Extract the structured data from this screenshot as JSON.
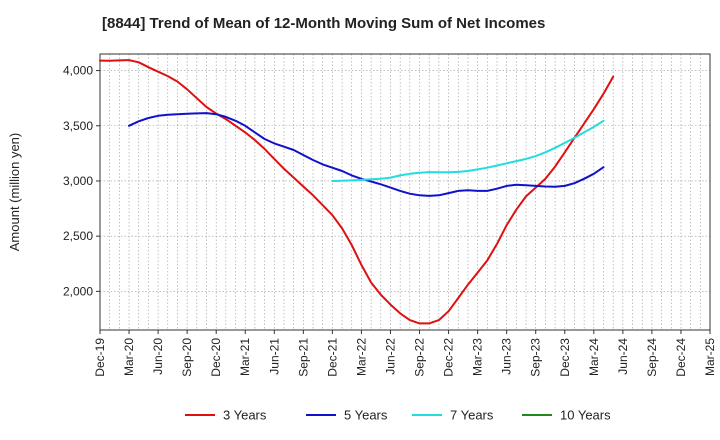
{
  "chart_data": {
    "type": "line",
    "title": "[8844]  Trend of Mean of 12-Month Moving Sum of Net Incomes",
    "xlabel": "",
    "ylabel": "Amount (million yen)",
    "ylim": [
      1650,
      4150
    ],
    "yticks": [
      2000,
      2500,
      3000,
      3500,
      4000
    ],
    "ytick_labels": [
      "2,000",
      "2,500",
      "3,000",
      "3,500",
      "4,000"
    ],
    "x_range": [
      0,
      63
    ],
    "xticks": [
      0,
      3,
      6,
      9,
      12,
      15,
      18,
      21,
      24,
      27,
      30,
      33,
      36,
      39,
      42,
      45,
      48,
      51,
      54,
      57,
      60,
      63
    ],
    "xtick_labels": [
      "Dec-19",
      "Mar-20",
      "Jun-20",
      "Sep-20",
      "Dec-20",
      "Mar-21",
      "Jun-21",
      "Sep-21",
      "Dec-21",
      "Mar-22",
      "Jun-22",
      "Sep-22",
      "Dec-22",
      "Mar-23",
      "Jun-23",
      "Sep-23",
      "Dec-23",
      "Mar-24",
      "Jun-24",
      "Sep-24",
      "Dec-24",
      "Mar-25"
    ],
    "grid": true,
    "legend_position": "bottom",
    "series": [
      {
        "name": "3 Years",
        "color": "#dd1111",
        "points": [
          [
            0,
            4090
          ],
          [
            1,
            4088
          ],
          [
            2,
            4092
          ],
          [
            3,
            4095
          ],
          [
            4,
            4075
          ],
          [
            5,
            4030
          ],
          [
            6,
            3990
          ],
          [
            7,
            3950
          ],
          [
            8,
            3900
          ],
          [
            9,
            3830
          ],
          [
            10,
            3750
          ],
          [
            11,
            3670
          ],
          [
            12,
            3610
          ],
          [
            13,
            3560
          ],
          [
            14,
            3500
          ],
          [
            15,
            3440
          ],
          [
            16,
            3370
          ],
          [
            17,
            3290
          ],
          [
            18,
            3200
          ],
          [
            19,
            3110
          ],
          [
            20,
            3030
          ],
          [
            21,
            2950
          ],
          [
            22,
            2870
          ],
          [
            23,
            2780
          ],
          [
            24,
            2690
          ],
          [
            25,
            2570
          ],
          [
            26,
            2420
          ],
          [
            27,
            2240
          ],
          [
            28,
            2080
          ],
          [
            29,
            1970
          ],
          [
            30,
            1880
          ],
          [
            31,
            1800
          ],
          [
            32,
            1740
          ],
          [
            33,
            1710
          ],
          [
            34,
            1710
          ],
          [
            35,
            1740
          ],
          [
            36,
            1820
          ],
          [
            37,
            1940
          ],
          [
            38,
            2060
          ],
          [
            39,
            2170
          ],
          [
            40,
            2280
          ],
          [
            41,
            2430
          ],
          [
            42,
            2600
          ],
          [
            43,
            2740
          ],
          [
            44,
            2860
          ],
          [
            45,
            2940
          ],
          [
            46,
            3020
          ],
          [
            47,
            3130
          ],
          [
            48,
            3260
          ],
          [
            49,
            3390
          ],
          [
            50,
            3520
          ],
          [
            51,
            3650
          ],
          [
            52,
            3790
          ],
          [
            53,
            3945
          ]
        ]
      },
      {
        "name": "5 Years",
        "color": "#1111cc",
        "points": [
          [
            3,
            3500
          ],
          [
            4,
            3540
          ],
          [
            5,
            3570
          ],
          [
            6,
            3590
          ],
          [
            7,
            3600
          ],
          [
            8,
            3605
          ],
          [
            9,
            3608
          ],
          [
            10,
            3612
          ],
          [
            11,
            3615
          ],
          [
            12,
            3605
          ],
          [
            13,
            3580
          ],
          [
            14,
            3545
          ],
          [
            15,
            3500
          ],
          [
            16,
            3440
          ],
          [
            17,
            3380
          ],
          [
            18,
            3340
          ],
          [
            19,
            3310
          ],
          [
            20,
            3280
          ],
          [
            21,
            3235
          ],
          [
            22,
            3190
          ],
          [
            23,
            3150
          ],
          [
            24,
            3120
          ],
          [
            25,
            3090
          ],
          [
            26,
            3050
          ],
          [
            27,
            3020
          ],
          [
            28,
            2995
          ],
          [
            29,
            2970
          ],
          [
            30,
            2940
          ],
          [
            31,
            2910
          ],
          [
            32,
            2885
          ],
          [
            33,
            2870
          ],
          [
            34,
            2865
          ],
          [
            35,
            2870
          ],
          [
            36,
            2890
          ],
          [
            37,
            2910
          ],
          [
            38,
            2915
          ],
          [
            39,
            2910
          ],
          [
            40,
            2910
          ],
          [
            41,
            2930
          ],
          [
            42,
            2955
          ],
          [
            43,
            2965
          ],
          [
            44,
            2962
          ],
          [
            45,
            2955
          ],
          [
            46,
            2950
          ],
          [
            47,
            2948
          ],
          [
            48,
            2955
          ],
          [
            49,
            2980
          ],
          [
            50,
            3020
          ],
          [
            51,
            3065
          ],
          [
            52,
            3125
          ]
        ]
      },
      {
        "name": "7 Years",
        "color": "#22dddd",
        "points": [
          [
            24,
            3000
          ],
          [
            25,
            3002
          ],
          [
            26,
            3005
          ],
          [
            27,
            3010
          ],
          [
            28,
            3015
          ],
          [
            29,
            3020
          ],
          [
            30,
            3030
          ],
          [
            31,
            3050
          ],
          [
            32,
            3065
          ],
          [
            33,
            3075
          ],
          [
            34,
            3080
          ],
          [
            35,
            3078
          ],
          [
            36,
            3078
          ],
          [
            37,
            3082
          ],
          [
            38,
            3090
          ],
          [
            39,
            3105
          ],
          [
            40,
            3120
          ],
          [
            41,
            3140
          ],
          [
            42,
            3160
          ],
          [
            43,
            3180
          ],
          [
            44,
            3200
          ],
          [
            45,
            3225
          ],
          [
            46,
            3260
          ],
          [
            47,
            3300
          ],
          [
            48,
            3345
          ],
          [
            49,
            3390
          ],
          [
            50,
            3440
          ],
          [
            51,
            3490
          ],
          [
            52,
            3545
          ]
        ]
      },
      {
        "name": "10 Years",
        "color": "#228822",
        "points": []
      }
    ]
  }
}
